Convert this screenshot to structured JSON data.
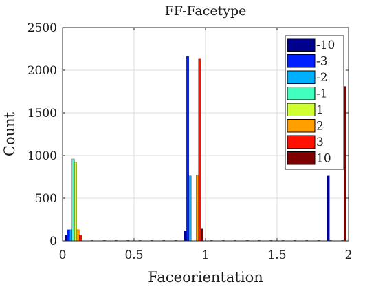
{
  "chart_data": {
    "type": "bar",
    "title": "FF-Facetype",
    "xlabel": "Faceorientation",
    "ylabel": "Count",
    "xlim": [
      0,
      2
    ],
    "ylim": [
      0,
      2500
    ],
    "xticks": [
      "0",
      "0.5",
      "1",
      "1.5",
      "2"
    ],
    "yticks": [
      "0",
      "500",
      "1000",
      "1500",
      "2000",
      "2500"
    ],
    "grid": true,
    "legend_position": "top-right",
    "bin_centers": [
      0.083,
      0.25,
      0.417,
      0.583,
      0.75,
      0.917,
      1.083,
      1.25,
      1.417,
      1.583,
      1.75,
      1.917
    ],
    "series": [
      {
        "name": "-10",
        "color": "#00008f",
        "values": [
          70,
          0,
          0,
          0,
          0,
          120,
          0,
          0,
          0,
          0,
          0,
          760
        ]
      },
      {
        "name": "-3",
        "color": "#0020ff",
        "values": [
          130,
          5,
          5,
          5,
          5,
          2160,
          5,
          5,
          5,
          5,
          5,
          5
        ]
      },
      {
        "name": "-2",
        "color": "#00afff",
        "values": [
          130,
          0,
          0,
          0,
          0,
          760,
          0,
          0,
          0,
          0,
          0,
          0
        ]
      },
      {
        "name": "-1",
        "color": "#40ffbf",
        "values": [
          960,
          0,
          0,
          0,
          0,
          0,
          0,
          0,
          0,
          0,
          0,
          0
        ]
      },
      {
        "name": "1",
        "color": "#cfff30",
        "values": [
          920,
          0,
          0,
          0,
          0,
          0,
          0,
          0,
          0,
          0,
          0,
          0
        ]
      },
      {
        "name": "2",
        "color": "#ff9f00",
        "values": [
          130,
          0,
          0,
          0,
          0,
          770,
          0,
          0,
          0,
          0,
          0,
          0
        ]
      },
      {
        "name": "3",
        "color": "#ff1000",
        "values": [
          70,
          5,
          5,
          5,
          5,
          2130,
          5,
          5,
          5,
          5,
          5,
          5
        ]
      },
      {
        "name": "10",
        "color": "#800000",
        "values": [
          0,
          0,
          0,
          0,
          0,
          140,
          0,
          0,
          0,
          0,
          0,
          1810
        ]
      }
    ]
  }
}
